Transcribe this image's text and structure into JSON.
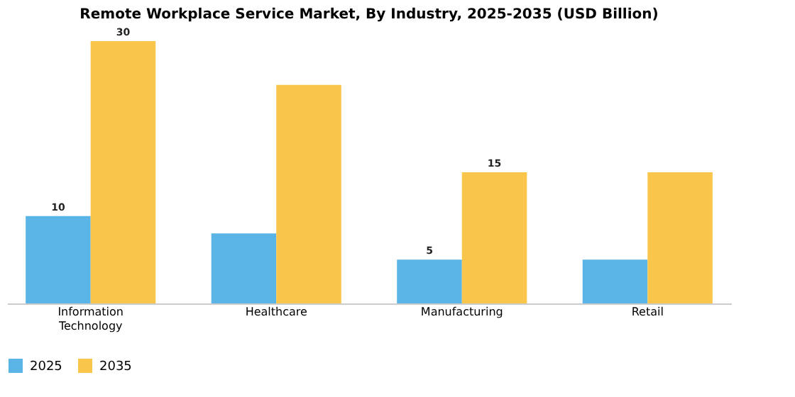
{
  "chart_data": {
    "type": "bar",
    "title": "Remote Workplace Service Market, By Industry, 2025-2035 (USD Billion)",
    "categories": [
      "Information Technology",
      "Healthcare",
      "Manufacturing",
      "Retail"
    ],
    "series": [
      {
        "name": "2025",
        "color": "#5ab4e5",
        "values": [
          10,
          8,
          5,
          5
        ],
        "value_labels": [
          "10",
          null,
          "5",
          null
        ]
      },
      {
        "name": "2035",
        "color": "#f9c54a",
        "values": [
          30,
          25,
          15,
          15
        ],
        "value_labels": [
          "30",
          null,
          "15",
          null
        ]
      }
    ],
    "legend": "bottom",
    "grid": false
  }
}
